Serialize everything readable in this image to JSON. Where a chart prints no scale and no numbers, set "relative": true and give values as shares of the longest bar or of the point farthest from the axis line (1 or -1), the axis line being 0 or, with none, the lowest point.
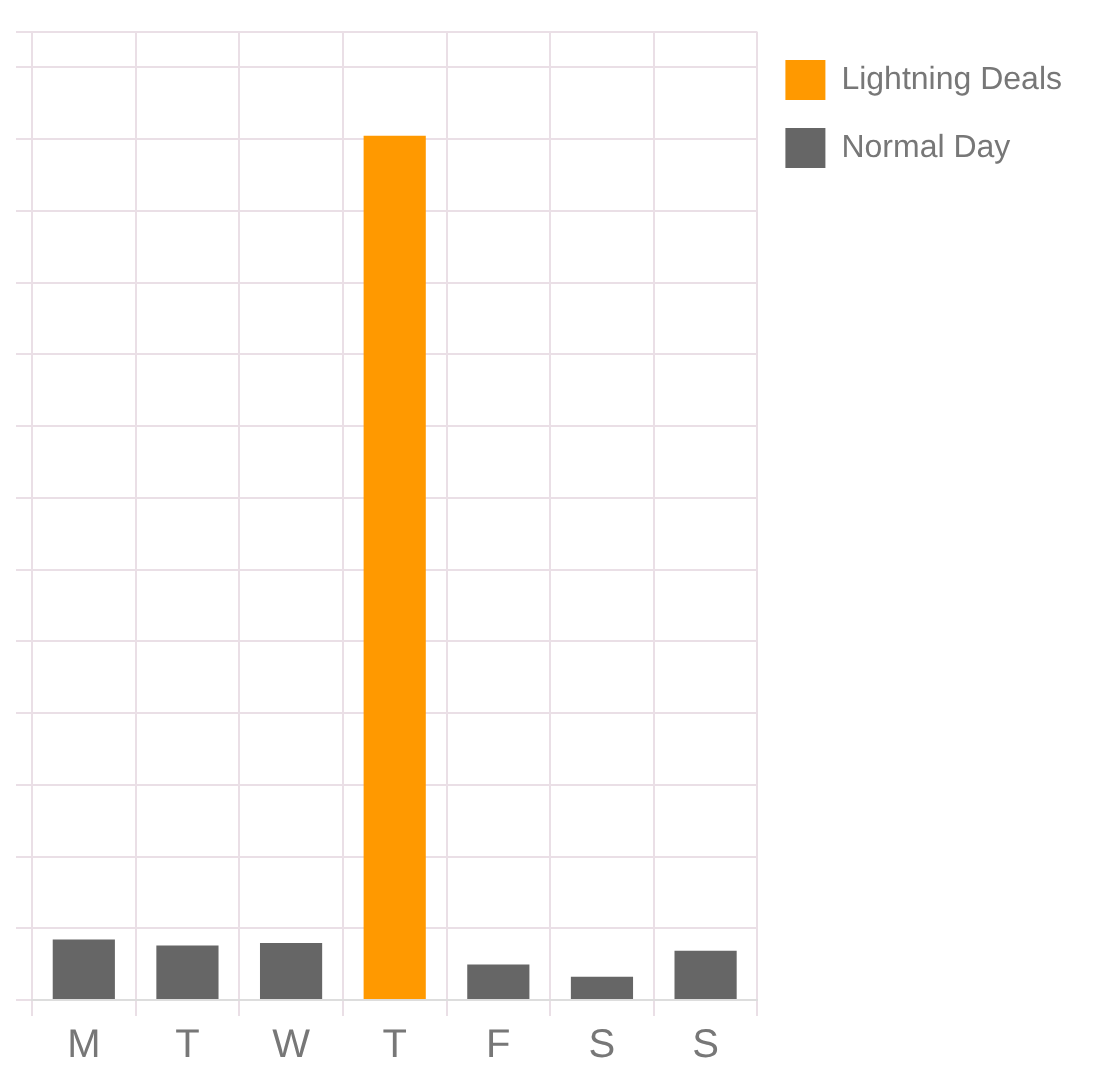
{
  "chart_data": {
    "type": "bar",
    "relative": true,
    "categories": [
      "M",
      "T",
      "W",
      "T",
      "F",
      "S",
      "S"
    ],
    "series": [
      {
        "name": "Lightning Deals",
        "color": "#ff9900",
        "values": [
          null,
          null,
          null,
          1,
          null,
          null,
          null
        ]
      },
      {
        "name": "Normal Day",
        "color": "#666666",
        "values": [
          0.07,
          0.063,
          0.066,
          null,
          0.041,
          0.027,
          0.057
        ]
      }
    ],
    "grid": true,
    "legend": "right"
  }
}
